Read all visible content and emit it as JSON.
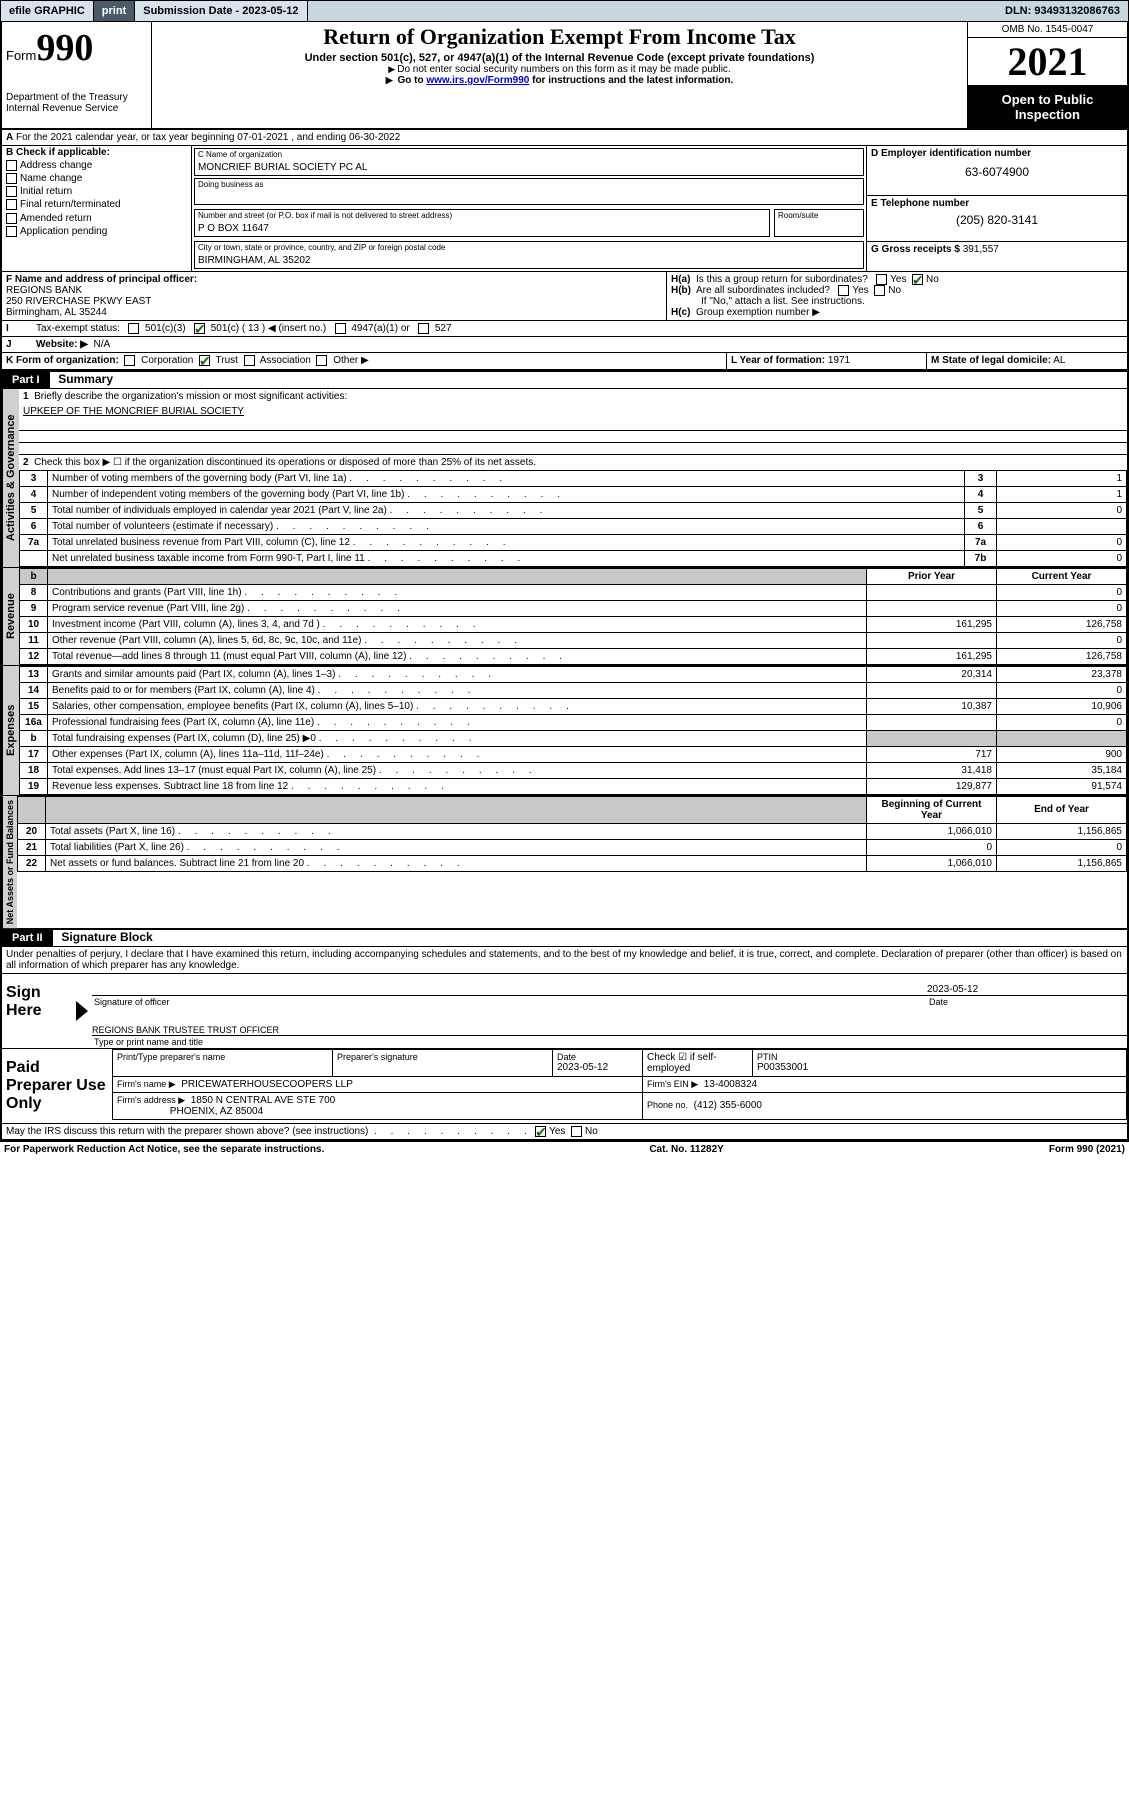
{
  "toolbar": {
    "efile": "efile GRAPHIC",
    "print": "print",
    "sub_date_label": "Submission Date - 2023-05-12",
    "dln": "DLN: 93493132086763"
  },
  "header": {
    "form_word": "Form",
    "form_no": "990",
    "dept": "Department of the Treasury",
    "irs": "Internal Revenue Service",
    "title": "Return of Organization Exempt From Income Tax",
    "sub1": "Under section 501(c), 527, or 4947(a)(1) of the Internal Revenue Code (except private foundations)",
    "sub2": "Do not enter social security numbers on this form as it may be made public.",
    "sub3_pre": "Go to ",
    "sub3_link": "www.irs.gov/Form990",
    "sub3_post": " for instructions and the latest information.",
    "omb": "OMB No. 1545-0047",
    "year": "2021",
    "open": "Open to Public Inspection"
  },
  "lineA": "For the 2021 calendar year, or tax year beginning 07-01-2021   , and ending 06-30-2022",
  "sectionB": {
    "label": "B Check if applicable:",
    "opts": [
      "Address change",
      "Name change",
      "Initial return",
      "Final return/terminated",
      "Amended return",
      "Application pending"
    ]
  },
  "sectionC": {
    "name_label": "C Name of organization",
    "name": "MONCRIEF BURIAL SOCIETY PC AL",
    "dba_label": "Doing business as",
    "dba": "",
    "street_label": "Number and street (or P.O. box if mail is not delivered to street address)",
    "room_label": "Room/suite",
    "street": "P O BOX 11647",
    "city_label": "City or town, state or province, country, and ZIP or foreign postal code",
    "city": "BIRMINGHAM, AL  35202"
  },
  "sectionD": {
    "label": "D Employer identification number",
    "val": "63-6074900"
  },
  "sectionE": {
    "label": "E Telephone number",
    "val": "(205) 820-3141"
  },
  "sectionG": {
    "label": "G Gross receipts $",
    "val": "391,557"
  },
  "sectionF": {
    "label": "F  Name and address of principal officer:",
    "l1": "REGIONS BANK",
    "l2": "250 RIVERCHASE PKWY EAST",
    "l3": "Birmingham, AL  35244"
  },
  "sectionH": {
    "a": "Is this a group return for subordinates?",
    "b": "Are all subordinates included?",
    "no_note": "If \"No,\" attach a list. See instructions.",
    "c": "Group exemption number ▶"
  },
  "sectionI": {
    "label": "Tax-exempt status:",
    "c13_insert": "◀ (insert no.)"
  },
  "sectionJ": {
    "label": "Website: ▶",
    "val": "N/A"
  },
  "sectionK": {
    "label": "K Form of organization:"
  },
  "sectionL": {
    "label": "L Year of formation:",
    "val": "1971"
  },
  "sectionM": {
    "label": "M State of legal domicile:",
    "val": "AL"
  },
  "part1": {
    "hdr": "Part I",
    "title": "Summary",
    "q1": "Briefly describe the organization's mission or most significant activities:",
    "mission": "UPKEEP OF THE MONCRIEF BURIAL SOCIETY",
    "q2": "Check this box ▶ ☐  if the organization discontinued its operations or disposed of more than 25% of its net assets.",
    "rows_gov": [
      {
        "n": "3",
        "d": "Number of voting members of the governing body (Part VI, line 1a)",
        "k": "3",
        "v": "1"
      },
      {
        "n": "4",
        "d": "Number of independent voting members of the governing body (Part VI, line 1b)",
        "k": "4",
        "v": "1"
      },
      {
        "n": "5",
        "d": "Total number of individuals employed in calendar year 2021 (Part V, line 2a)",
        "k": "5",
        "v": "0"
      },
      {
        "n": "6",
        "d": "Total number of volunteers (estimate if necessary)",
        "k": "6",
        "v": ""
      },
      {
        "n": "7a",
        "d": "Total unrelated business revenue from Part VIII, column (C), line 12",
        "k": "7a",
        "v": "0"
      },
      {
        "n": "",
        "d": "Net unrelated business taxable income from Form 990-T, Part I, line 11",
        "k": "7b",
        "v": "0"
      }
    ],
    "col_prior": "Prior Year",
    "col_curr": "Current Year",
    "rows_rev": [
      {
        "n": "8",
        "d": "Contributions and grants (Part VIII, line 1h)",
        "p": "",
        "c": "0"
      },
      {
        "n": "9",
        "d": "Program service revenue (Part VIII, line 2g)",
        "p": "",
        "c": "0"
      },
      {
        "n": "10",
        "d": "Investment income (Part VIII, column (A), lines 3, 4, and 7d )",
        "p": "161,295",
        "c": "126,758"
      },
      {
        "n": "11",
        "d": "Other revenue (Part VIII, column (A), lines 5, 6d, 8c, 9c, 10c, and 11e)",
        "p": "",
        "c": "0"
      },
      {
        "n": "12",
        "d": "Total revenue—add lines 8 through 11 (must equal Part VIII, column (A), line 12)",
        "p": "161,295",
        "c": "126,758"
      }
    ],
    "rows_exp": [
      {
        "n": "13",
        "d": "Grants and similar amounts paid (Part IX, column (A), lines 1–3)",
        "p": "20,314",
        "c": "23,378"
      },
      {
        "n": "14",
        "d": "Benefits paid to or for members (Part IX, column (A), line 4)",
        "p": "",
        "c": "0"
      },
      {
        "n": "15",
        "d": "Salaries, other compensation, employee benefits (Part IX, column (A), lines 5–10)",
        "p": "10,387",
        "c": "10,906"
      },
      {
        "n": "16a",
        "d": "Professional fundraising fees (Part IX, column (A), line 11e)",
        "p": "",
        "c": "0"
      },
      {
        "n": "b",
        "d": "Total fundraising expenses (Part IX, column (D), line 25) ▶0",
        "p": "GREY",
        "c": "GREY"
      },
      {
        "n": "17",
        "d": "Other expenses (Part IX, column (A), lines 11a–11d, 11f–24e)",
        "p": "717",
        "c": "900"
      },
      {
        "n": "18",
        "d": "Total expenses. Add lines 13–17 (must equal Part IX, column (A), line 25)",
        "p": "31,418",
        "c": "35,184"
      },
      {
        "n": "19",
        "d": "Revenue less expenses. Subtract line 18 from line 12",
        "p": "129,877",
        "c": "91,574"
      }
    ],
    "col_beg": "Beginning of Current Year",
    "col_end": "End of Year",
    "rows_net": [
      {
        "n": "20",
        "d": "Total assets (Part X, line 16)",
        "p": "1,066,010",
        "c": "1,156,865"
      },
      {
        "n": "21",
        "d": "Total liabilities (Part X, line 26)",
        "p": "0",
        "c": "0"
      },
      {
        "n": "22",
        "d": "Net assets or fund balances. Subtract line 21 from line 20",
        "p": "1,066,010",
        "c": "1,156,865"
      }
    ],
    "vlab_gov": "Activities & Governance",
    "vlab_rev": "Revenue",
    "vlab_exp": "Expenses",
    "vlab_net": "Net Assets or Fund Balances"
  },
  "part2": {
    "hdr": "Part II",
    "title": "Signature Block",
    "decl": "Under penalties of perjury, I declare that I have examined this return, including accompanying schedules and statements, and to the best of my knowledge and belief, it is true, correct, and complete. Declaration of preparer (other than officer) is based on all information of which preparer has any knowledge.",
    "sign_here": "Sign Here",
    "sig_officer": "Signature of officer",
    "sig_date": "Date",
    "sig_date_val": "2023-05-12",
    "officer_name": "REGIONS BANK TRUSTEE  TRUST OFFICER",
    "type_name": "Type or print name and title",
    "paid": "Paid Preparer Use Only",
    "p_name_lab": "Print/Type preparer's name",
    "p_sig_lab": "Preparer's signature",
    "p_date_lab": "Date",
    "p_date": "2023-05-12",
    "p_check": "Check ☑ if self-employed",
    "ptin_lab": "PTIN",
    "ptin": "P00353001",
    "firm_name_lab": "Firm's name      ▶",
    "firm_name": "PRICEWATERHOUSECOOPERS LLP",
    "firm_ein_lab": "Firm's EIN ▶",
    "firm_ein": "13-4008324",
    "firm_addr_lab": "Firm's address ▶",
    "firm_addr1": "1850 N CENTRAL AVE STE 700",
    "firm_addr2": "PHOENIX, AZ  85004",
    "phone_lab": "Phone no.",
    "phone": "(412) 355-6000",
    "may_irs": "May the IRS discuss this return with the preparer shown above? (see instructions)"
  },
  "footer": {
    "l": "For Paperwork Reduction Act Notice, see the separate instructions.",
    "m": "Cat. No. 11282Y",
    "r": "Form 990 (2021)"
  },
  "yesno": {
    "yes": "Yes",
    "no": "No"
  }
}
